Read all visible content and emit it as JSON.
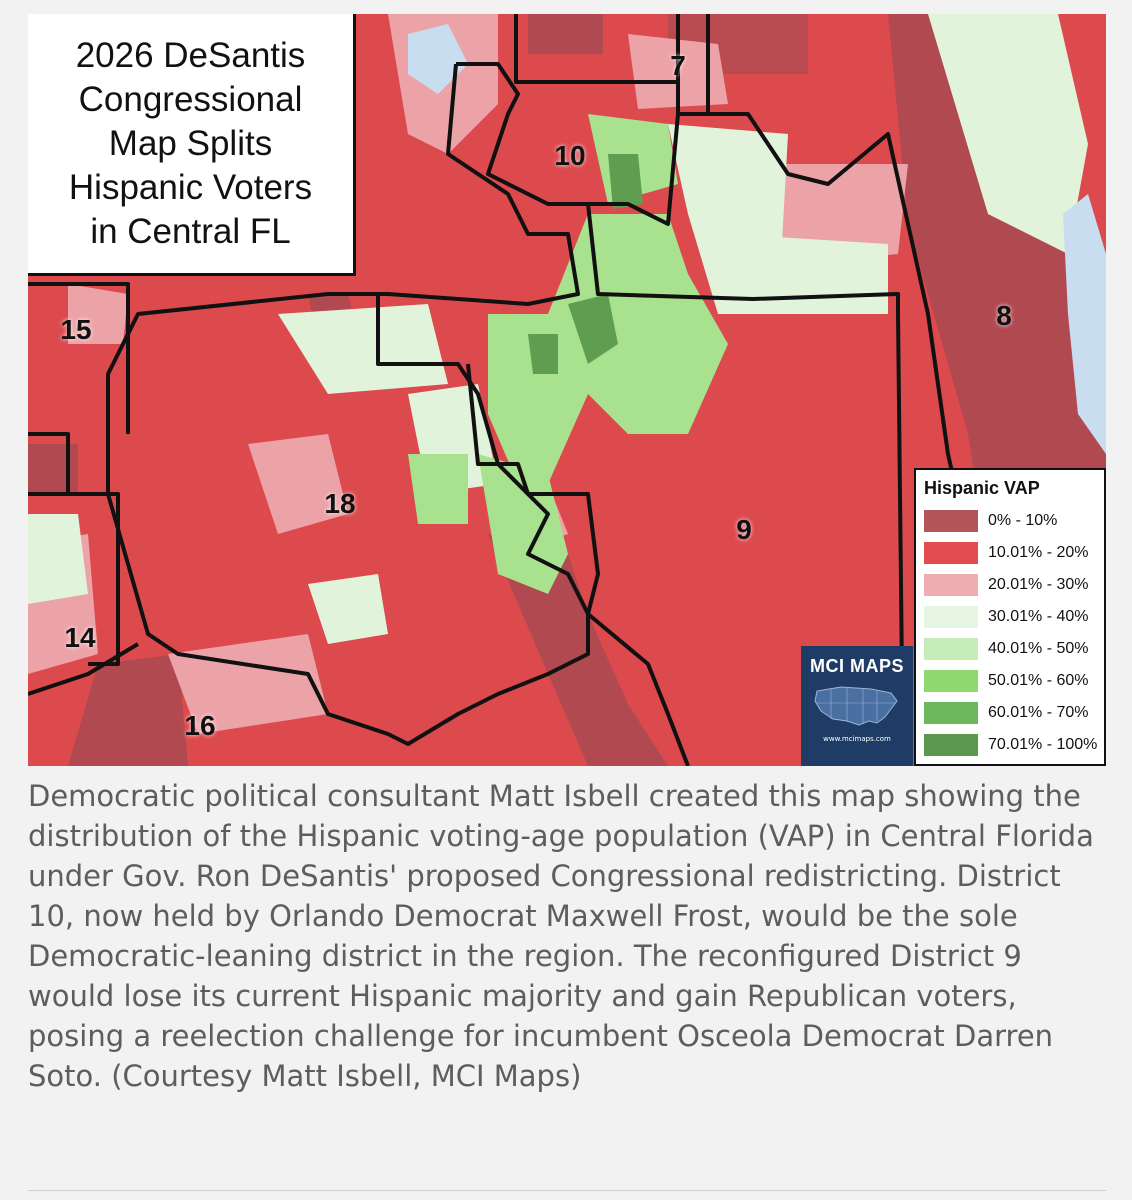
{
  "map": {
    "title_lines": [
      "2026 DeSantis",
      "Congressional",
      "Map Splits",
      "Hispanic Voters",
      "in Central FL"
    ],
    "district_labels": [
      "7",
      "10",
      "8",
      "15",
      "18",
      "9",
      "14",
      "16"
    ],
    "legend": {
      "title": "Hispanic VAP",
      "items": [
        {
          "label": "0% - 10%",
          "color": "#b5555a"
        },
        {
          "label": "10.01% - 20%",
          "color": "#e24c50"
        },
        {
          "label": "20.01% - 30%",
          "color": "#eeadb0"
        },
        {
          "label": "30.01% - 40%",
          "color": "#e6f5e2"
        },
        {
          "label": "40.01% - 50%",
          "color": "#c6ecb7"
        },
        {
          "label": "50.01% - 60%",
          "color": "#8fd870"
        },
        {
          "label": "60.01% - 70%",
          "color": "#6cb85a"
        },
        {
          "label": "70.01% - 100%",
          "color": "#5b9a4e"
        }
      ]
    },
    "logo": {
      "title": "MCI MAPS",
      "url": "www.mcimaps.com"
    }
  },
  "caption": "Democratic political consultant Matt Isbell created this map showing the distribution of the Hispanic voting-age population (VAP) in Central Florida under Gov. Ron DeSantis' proposed Congressional redistricting. District 10, now held by Orlando Democrat Maxwell Frost, would be the sole Democratic-leaning district in the region. The reconfigured District 9 would lose its current Hispanic majority and gain Republican voters, posing a reelection challenge for incumbent Osceola Democrat Darren Soto. (Courtesy Matt Isbell, MCI Maps)"
}
